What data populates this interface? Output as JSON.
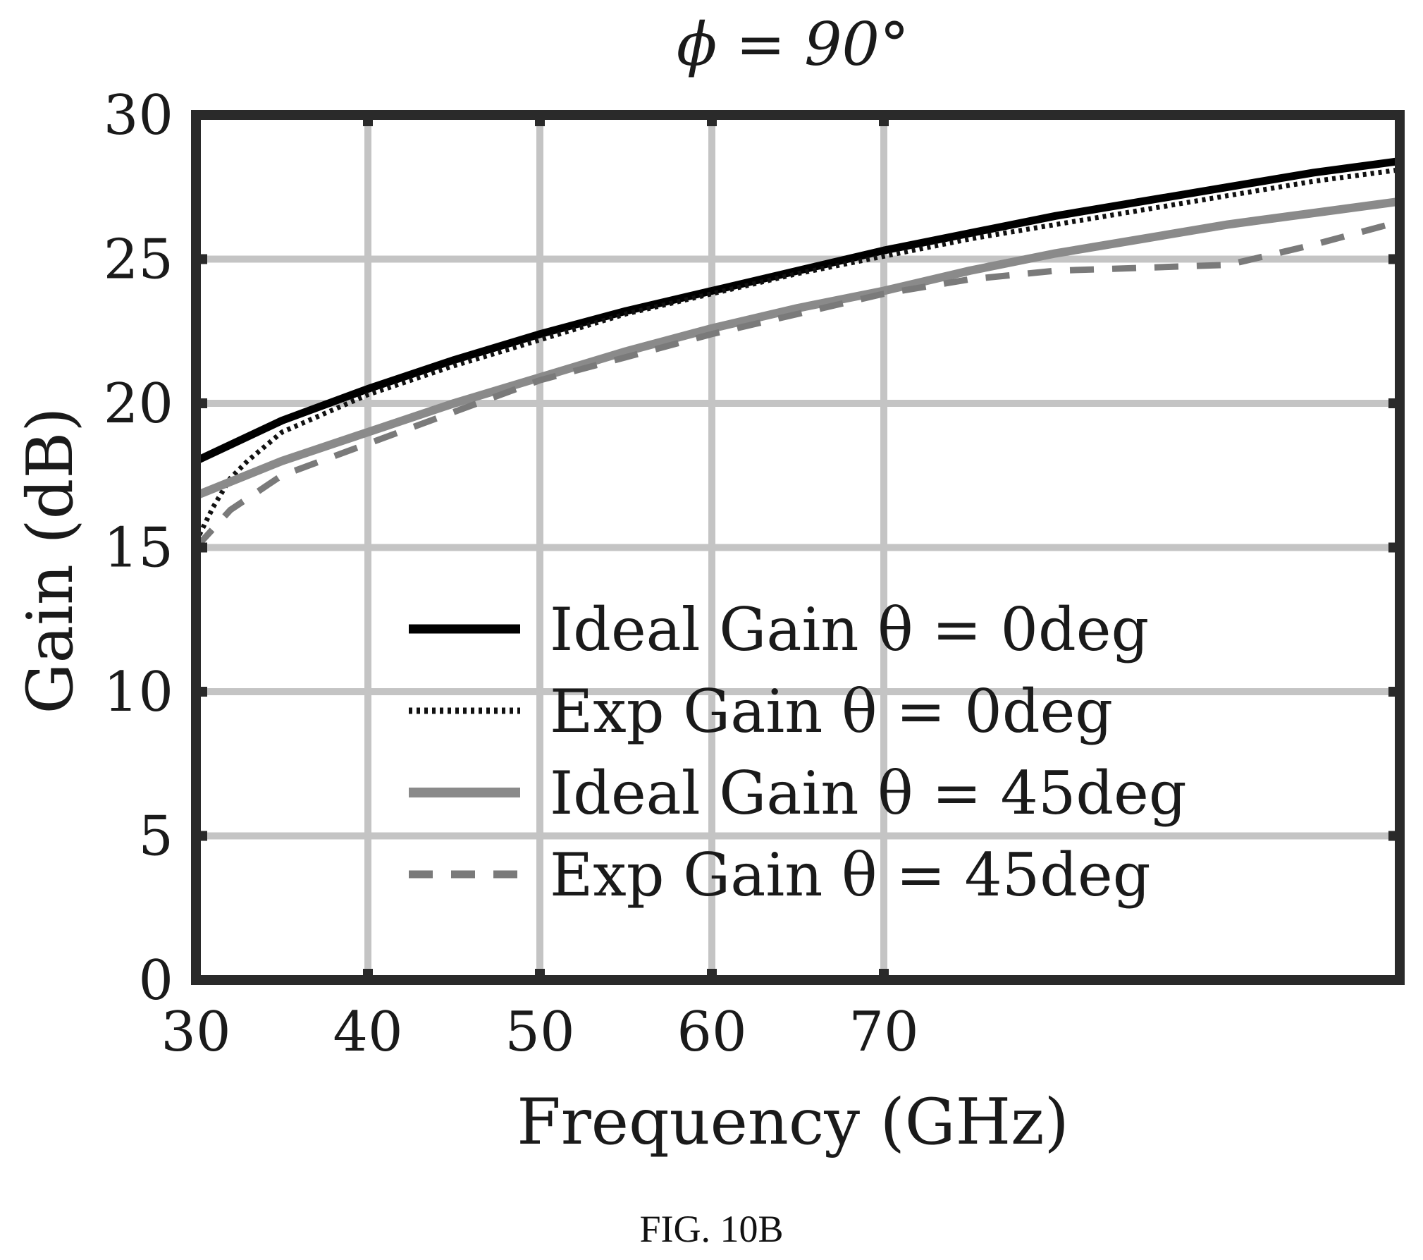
{
  "caption": "FIG. 10B",
  "chart_data": {
    "type": "line",
    "title": "ϕ = 90°",
    "xlabel": "Frequency (GHz)",
    "ylabel": "Gain (dB)",
    "xlim": [
      30,
      100
    ],
    "ylim": [
      0,
      30
    ],
    "xticks": [
      30,
      40,
      50,
      60,
      70
    ],
    "yticks": [
      0,
      5,
      10,
      15,
      20,
      25,
      30
    ],
    "grid": true,
    "legend_position": "bottom-center",
    "series": [
      {
        "name": "Ideal Gain θ = 0deg",
        "style": "solid",
        "color": "#000000",
        "width": 11,
        "x": [
          30,
          35,
          40,
          45,
          50,
          55,
          60,
          65,
          70,
          75,
          80,
          85,
          90,
          95,
          100
        ],
        "y": [
          18.0,
          19.4,
          20.5,
          21.5,
          22.4,
          23.2,
          23.9,
          24.6,
          25.3,
          25.9,
          26.5,
          27.0,
          27.5,
          28.0,
          28.4
        ]
      },
      {
        "name": "Exp Gain θ = 0deg",
        "style": "dotted",
        "color": "#111111",
        "width": 7,
        "x": [
          30,
          31,
          32,
          33,
          35,
          40,
          45,
          50,
          55,
          60,
          65,
          70,
          75,
          80,
          85,
          90,
          95,
          100
        ],
        "y": [
          15.2,
          16.4,
          17.4,
          18.0,
          19.0,
          20.3,
          21.3,
          22.2,
          23.1,
          23.8,
          24.5,
          25.1,
          25.7,
          26.2,
          26.7,
          27.2,
          27.7,
          28.1
        ]
      },
      {
        "name": "Ideal Gain θ = 45deg",
        "style": "solid",
        "color": "#8a8a8a",
        "width": 12,
        "x": [
          30,
          35,
          40,
          45,
          50,
          55,
          60,
          65,
          70,
          75,
          80,
          85,
          90,
          95,
          100
        ],
        "y": [
          16.8,
          18.0,
          19.0,
          20.0,
          20.9,
          21.8,
          22.6,
          23.3,
          23.9,
          24.6,
          25.2,
          25.7,
          26.2,
          26.6,
          27.0
        ]
      },
      {
        "name": "Exp Gain θ = 45deg",
        "style": "dashed",
        "color": "#7a7a7a",
        "width": 9,
        "x": [
          30,
          32,
          35,
          40,
          45,
          50,
          55,
          60,
          65,
          70,
          75,
          80,
          85,
          90,
          95,
          100
        ],
        "y": [
          15.0,
          16.3,
          17.5,
          18.6,
          19.7,
          20.8,
          21.6,
          22.4,
          23.1,
          23.8,
          24.3,
          24.6,
          24.7,
          24.8,
          25.5,
          26.3
        ]
      }
    ]
  }
}
